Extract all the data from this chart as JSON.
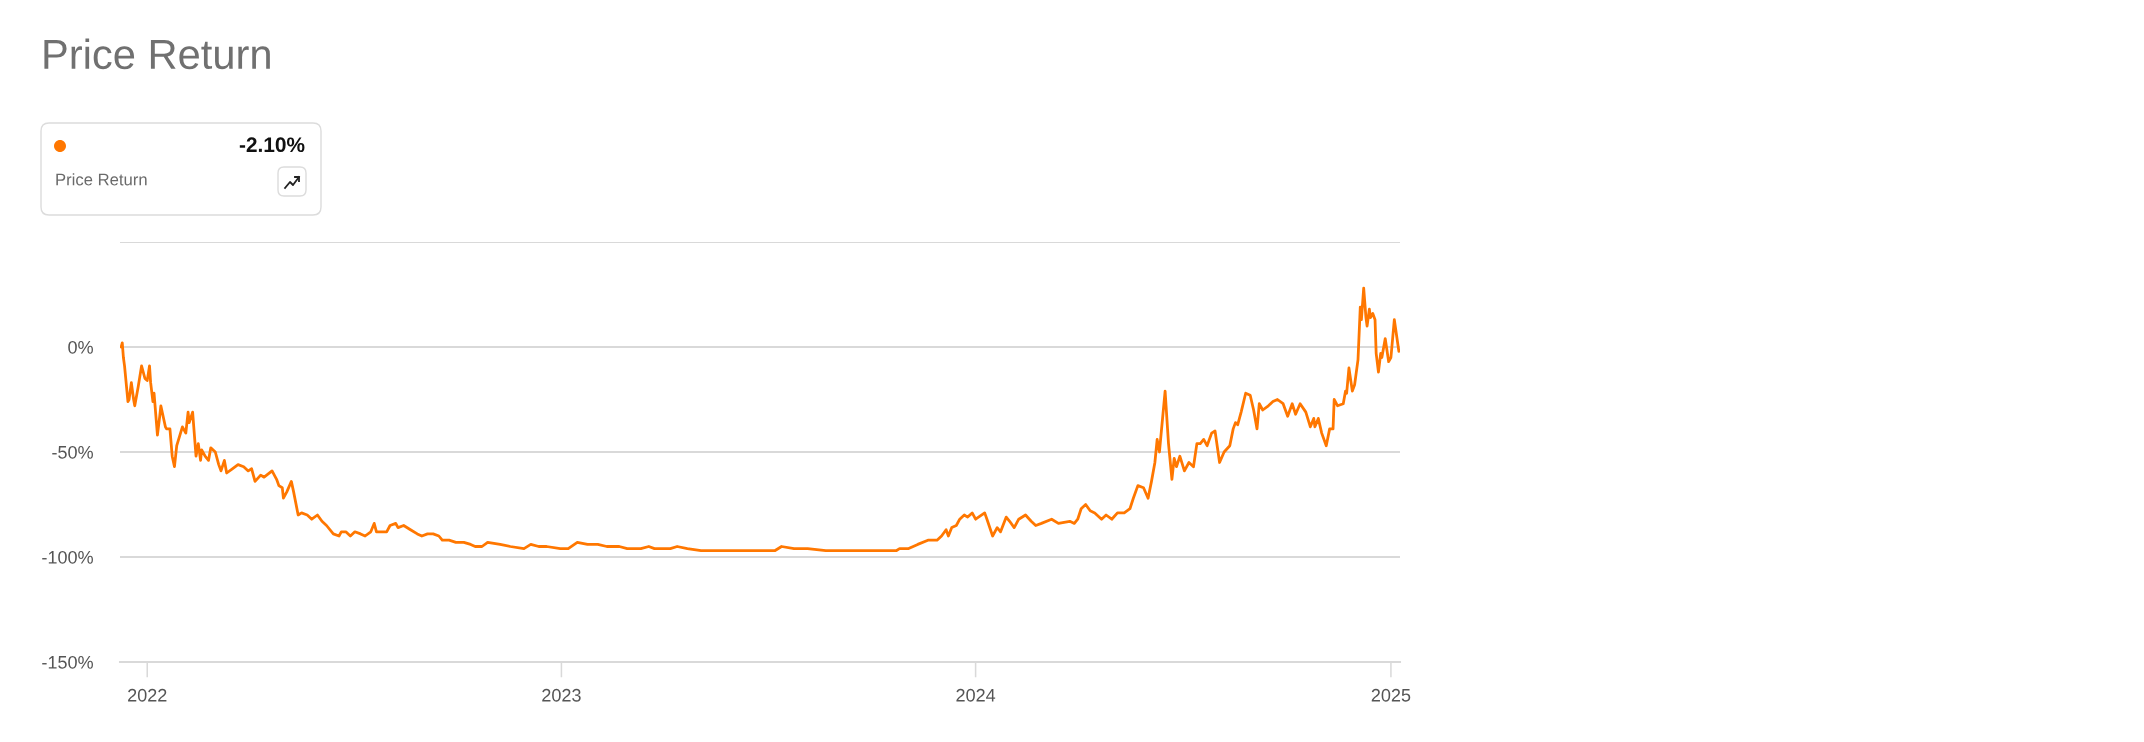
{
  "chart_data": {
    "type": "line",
    "title": "Price Return",
    "annotations": [
      "-2.10%",
      "Price Return"
    ],
    "xlim": [
      "2021-12-08",
      "2025-01-09"
    ],
    "xticks": [
      {
        "value": "2022-01-01",
        "label": "2022"
      },
      {
        "value": "2023-01-01",
        "label": "2023"
      },
      {
        "value": "2024-01-01",
        "label": "2024"
      },
      {
        "value": "2025-01-01",
        "label": "2025"
      }
    ],
    "ylim": [
      -150,
      50
    ],
    "yticks": [
      {
        "value": -150,
        "label": "-150%"
      },
      {
        "value": -100,
        "label": "-100%"
      },
      {
        "value": -50,
        "label": "-50%"
      },
      {
        "value": 0,
        "label": "0%"
      },
      {
        "value": 50,
        "label": null
      }
    ],
    "grid": "y",
    "line_style": "solid",
    "series": [
      {
        "color": "#ff7700",
        "x": [
          "2021-12-09",
          "2021-12-10",
          "2021-12-11",
          "2021-12-12",
          "2021-12-15",
          "2021-12-16",
          "2021-12-18",
          "2021-12-20",
          "2021-12-21",
          "2021-12-24",
          "2021-12-27",
          "2021-12-30",
          "2022-01-01",
          "2022-01-03",
          "2022-01-04",
          "2022-01-06",
          "2022-01-07",
          "2022-01-10",
          "2022-01-12",
          "2022-01-13",
          "2022-01-17",
          "2022-01-18",
          "2022-01-21",
          "2022-01-23",
          "2022-01-25",
          "2022-01-27",
          "2022-02-01",
          "2022-02-04",
          "2022-02-06",
          "2022-02-07",
          "2022-02-10",
          "2022-02-13",
          "2022-02-15",
          "2022-02-17",
          "2022-02-18",
          "2022-02-21",
          "2022-02-24",
          "2022-02-26",
          "2022-03-02",
          "2022-03-05",
          "2022-03-07",
          "2022-03-10",
          "2022-03-12",
          "2022-03-17",
          "2022-03-22",
          "2022-03-27",
          "2022-03-31",
          "2022-04-03",
          "2022-04-06",
          "2022-04-11",
          "2022-04-14",
          "2022-04-21",
          "2022-04-25",
          "2022-04-27",
          "2022-04-30",
          "2022-05-01",
          "2022-05-04",
          "2022-05-08",
          "2022-05-10",
          "2022-05-14",
          "2022-05-17",
          "2022-05-22",
          "2022-05-26",
          "2022-05-31",
          "2022-06-04",
          "2022-06-08",
          "2022-06-14",
          "2022-06-19",
          "2022-06-21",
          "2022-06-25",
          "2022-06-29",
          "2022-07-03",
          "2022-07-08",
          "2022-07-12",
          "2022-07-17",
          "2022-07-20",
          "2022-07-22",
          "2022-07-28",
          "2022-07-31",
          "2022-08-03",
          "2022-08-08",
          "2022-08-10",
          "2022-08-15",
          "2022-08-21",
          "2022-08-27",
          "2022-08-31",
          "2022-09-05",
          "2022-09-10",
          "2022-09-15",
          "2022-09-18",
          "2022-09-24",
          "2022-09-30",
          "2022-10-07",
          "2022-10-13",
          "2022-10-17",
          "2022-10-23",
          "2022-10-28",
          "2022-11-08",
          "2022-11-17",
          "2022-11-29",
          "2022-12-05",
          "2022-12-12",
          "2022-12-19",
          "2022-12-31",
          "2023-01-07",
          "2023-01-15",
          "2023-01-24",
          "2023-02-02",
          "2023-02-10",
          "2023-02-21",
          "2023-02-28",
          "2023-03-12",
          "2023-03-19",
          "2023-03-24",
          "2023-04-07",
          "2023-04-13",
          "2023-04-22",
          "2023-05-04",
          "2023-05-11",
          "2023-05-22",
          "2023-06-08",
          "2023-06-20",
          "2023-07-08",
          "2023-07-14",
          "2023-07-25",
          "2023-08-06",
          "2023-08-22",
          "2023-08-27",
          "2023-09-19",
          "2023-10-07",
          "2023-10-23",
          "2023-10-26",
          "2023-11-03",
          "2023-11-11",
          "2023-11-20",
          "2023-11-28",
          "2023-12-02",
          "2023-12-06",
          "2023-12-08",
          "2023-12-11",
          "2023-12-15",
          "2023-12-18",
          "2023-12-22",
          "2023-12-25",
          "2023-12-29",
          "2024-01-01",
          "2024-01-09",
          "2024-01-11",
          "2024-01-16",
          "2024-01-20",
          "2024-01-23",
          "2024-01-28",
          "2024-01-31",
          "2024-02-04",
          "2024-02-08",
          "2024-02-14",
          "2024-02-19",
          "2024-02-23",
          "2024-02-28",
          "2024-03-08",
          "2024-03-14",
          "2024-03-24",
          "2024-03-28",
          "2024-03-31",
          "2024-04-03",
          "2024-04-07",
          "2024-04-11",
          "2024-04-15",
          "2024-04-21",
          "2024-04-25",
          "2024-04-30",
          "2024-05-05",
          "2024-05-11",
          "2024-05-16",
          "2024-05-19",
          "2024-05-23",
          "2024-05-28",
          "2024-06-01",
          "2024-06-04",
          "2024-06-07",
          "2024-06-09",
          "2024-06-11",
          "2024-06-16",
          "2024-06-19",
          "2024-06-22",
          "2024-06-24",
          "2024-06-26",
          "2024-06-29",
          "2024-07-03",
          "2024-07-07",
          "2024-07-11",
          "2024-07-14",
          "2024-07-17",
          "2024-07-20",
          "2024-07-23",
          "2024-07-27",
          "2024-07-30",
          "2024-08-03",
          "2024-08-07",
          "2024-08-12",
          "2024-08-15",
          "2024-08-17",
          "2024-08-19",
          "2024-08-22",
          "2024-08-26",
          "2024-08-30",
          "2024-09-02",
          "2024-09-05",
          "2024-09-07",
          "2024-09-10",
          "2024-09-15",
          "2024-09-19",
          "2024-09-23",
          "2024-09-28",
          "2024-10-02",
          "2024-10-06",
          "2024-10-09",
          "2024-10-13",
          "2024-10-18",
          "2024-10-22",
          "2024-10-25",
          "2024-10-26",
          "2024-10-29",
          "2024-11-01",
          "2024-11-05",
          "2024-11-08",
          "2024-11-11",
          "2024-11-12",
          "2024-11-15",
          "2024-11-20",
          "2024-11-22",
          "2024-11-23",
          "2024-11-25",
          "2024-11-28",
          "2024-11-30",
          "2024-12-03",
          "2024-12-05",
          "2024-12-06",
          "2024-12-08",
          "2024-12-10",
          "2024-12-11",
          "2024-12-13",
          "2024-12-14",
          "2024-12-16",
          "2024-12-18",
          "2024-12-19",
          "2024-12-21",
          "2024-12-23",
          "2024-12-24",
          "2024-12-27",
          "2024-12-30",
          "2025-01-01",
          "2025-01-04",
          "2025-01-08"
        ],
        "values": [
          0,
          2,
          -5,
          -9,
          -26,
          -25,
          -17,
          -25,
          -28,
          -19,
          -9,
          -15,
          -16,
          -9,
          -17,
          -26,
          -22,
          -42,
          -33,
          -28,
          -38,
          -39,
          -39,
          -52,
          -57,
          -47,
          -38,
          -41,
          -31,
          -36,
          -31,
          -52,
          -46,
          -54,
          -49,
          -52,
          -54,
          -48,
          -50,
          -56,
          -59,
          -54,
          -60,
          -58,
          -56,
          -57,
          -59,
          -58,
          -64,
          -61,
          -62,
          -59,
          -63,
          -66,
          -67,
          -72,
          -69,
          -64,
          -69,
          -80,
          -79,
          -80,
          -82,
          -80,
          -83,
          -85,
          -89,
          -90,
          -88,
          -88,
          -90,
          -88,
          -89,
          -90,
          -88,
          -84,
          -88,
          -88,
          -88,
          -85,
          -84,
          -86,
          -85,
          -87,
          -89,
          -90,
          -89,
          -89,
          -90,
          -92,
          -92,
          -93,
          -93,
          -94,
          -95,
          -95,
          -93,
          -94,
          -95,
          -96,
          -94,
          -95,
          -95,
          -96,
          -96,
          -93,
          -94,
          -94,
          -95,
          -95,
          -96,
          -96,
          -95,
          -96,
          -96,
          -95,
          -96,
          -97,
          -97,
          -97,
          -97,
          -97,
          -97,
          -95,
          -96,
          -96,
          -97,
          -97,
          -97,
          -97,
          -97,
          -96,
          -96,
          -94,
          -92,
          -92,
          -90,
          -87,
          -90,
          -86,
          -85,
          -82,
          -80,
          -81,
          -79,
          -82,
          -79,
          -82,
          -90,
          -86,
          -88,
          -81,
          -83,
          -86,
          -82,
          -80,
          -83,
          -85,
          -84,
          -82,
          -84,
          -83,
          -84,
          -82,
          -77,
          -75,
          -78,
          -79,
          -82,
          -80,
          -82,
          -79,
          -79,
          -77,
          -72,
          -66,
          -67,
          -72,
          -64,
          -55,
          -44,
          -50,
          -21,
          -46,
          -63,
          -53,
          -57,
          -52,
          -59,
          -55,
          -57,
          -46,
          -46,
          -44,
          -47,
          -41,
          -40,
          -55,
          -50,
          -47,
          -39,
          -36,
          -37,
          -31,
          -22,
          -23,
          -30,
          -39,
          -27,
          -30,
          -28,
          -26,
          -25,
          -27,
          -33,
          -27,
          -32,
          -27,
          -31,
          -38,
          -34,
          -38,
          -34,
          -41,
          -47,
          -39,
          -39,
          -25,
          -28,
          -27,
          -21,
          -22,
          -10,
          -21,
          -18,
          -6,
          19,
          13,
          28,
          14,
          10,
          18,
          14,
          16,
          13,
          -3,
          -12,
          -3,
          -5,
          4,
          -7,
          -5,
          13,
          -2.1
        ]
      }
    ]
  }
}
